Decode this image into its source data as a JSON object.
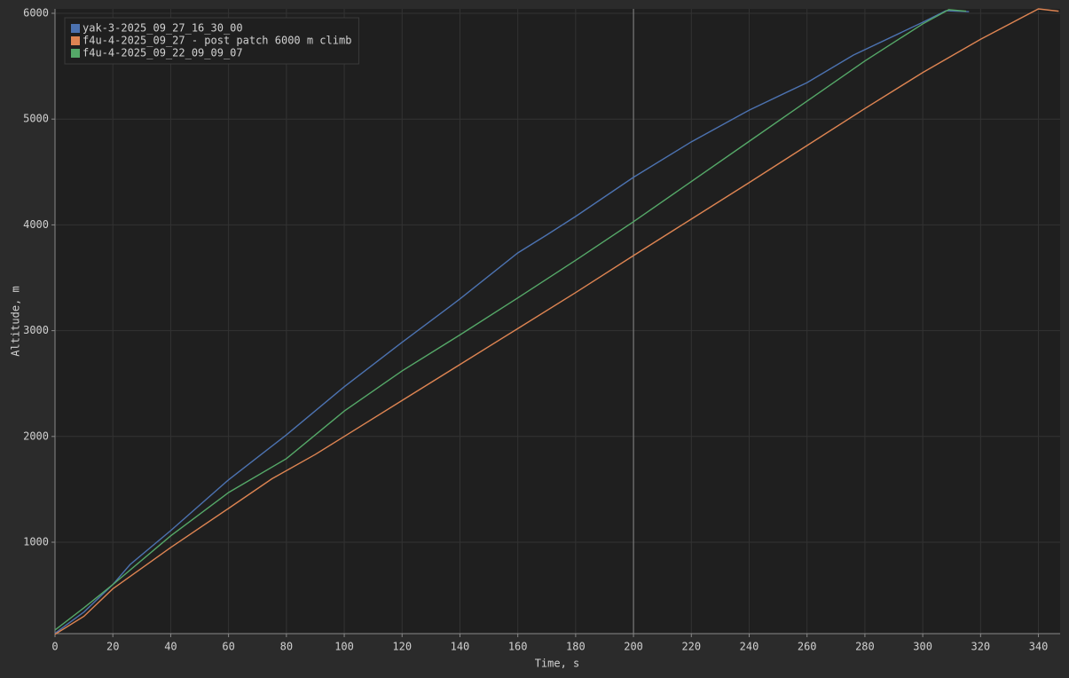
{
  "chart_data": {
    "type": "line",
    "x_label": "Time, s",
    "y_label": "Altitude, m",
    "xlim": [
      0,
      347.5
    ],
    "ylim": [
      136,
      6042
    ],
    "xticks": [
      0,
      20,
      40,
      60,
      80,
      100,
      120,
      140,
      160,
      180,
      200,
      220,
      240,
      260,
      280,
      300,
      320,
      340
    ],
    "yticks": [
      1000,
      2000,
      3000,
      4000,
      5000,
      6000
    ],
    "grid": true,
    "cursor_x": 200,
    "legend": "upper-left",
    "series": [
      {
        "name": "yak-3-2025_09_27_16_30_00",
        "color": "#4c72b0",
        "x": [
          0,
          10,
          20,
          26,
          40,
          60,
          80,
          100,
          120,
          140,
          160,
          170,
          180,
          200,
          220,
          240,
          260,
          276,
          300,
          308,
          316
        ],
        "values": [
          140,
          340,
          600,
          790,
          1110,
          1590,
          2015,
          2470,
          2890,
          3300,
          3735,
          3905,
          4080,
          4450,
          4785,
          5085,
          5345,
          5605,
          5915,
          6025,
          6015
        ]
      },
      {
        "name": "f4u-4-2025_09_27 - post patch 6000 m climb",
        "color": "#dd8452",
        "x": [
          0,
          10,
          20,
          40,
          60,
          75,
          90,
          100,
          120,
          140,
          160,
          180,
          200,
          220,
          240,
          260,
          280,
          300,
          320,
          340,
          347
        ],
        "values": [
          130,
          300,
          560,
          950,
          1320,
          1600,
          1830,
          2000,
          2340,
          2680,
          3020,
          3360,
          3710,
          4055,
          4400,
          4750,
          5100,
          5440,
          5755,
          6042,
          6020
        ]
      },
      {
        "name": "f4u-4-2025_09_22_09_09_07",
        "color": "#55a868",
        "x": [
          0,
          10,
          20,
          40,
          60,
          80,
          100,
          120,
          140,
          160,
          180,
          200,
          220,
          240,
          260,
          280,
          300,
          309,
          315
        ],
        "values": [
          170,
          380,
          600,
          1060,
          1470,
          1790,
          2240,
          2620,
          2960,
          3310,
          3665,
          4030,
          4410,
          4790,
          5170,
          5550,
          5900,
          6035,
          6020
        ]
      }
    ]
  }
}
